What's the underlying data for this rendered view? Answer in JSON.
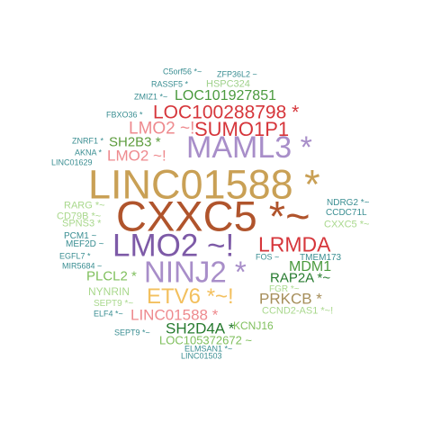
{
  "words": [
    {
      "text": "C5orf56 *~",
      "color": "#3a8e92"
    },
    {
      "text": "ZFP36L2 ~",
      "color": "#3a8e92"
    },
    {
      "text": "RASSF5 *",
      "color": "#3a8e92"
    },
    {
      "text": "HSPC324",
      "color": "#9fd18b"
    },
    {
      "text": "ZMIZ1 *~",
      "color": "#3a8e92"
    },
    {
      "text": "LOC101927851",
      "color": "#4b9a3e"
    },
    {
      "text": "FBXO36 *",
      "color": "#3a8e92"
    },
    {
      "text": "LOC100288798 *",
      "color": "#d6363b"
    },
    {
      "text": "LMO2 ~!",
      "color": "#ee8a8e"
    },
    {
      "text": "SUMO1P1",
      "color": "#d6363b"
    },
    {
      "text": "ZNRF1 *",
      "color": "#3a8e92"
    },
    {
      "text": "SH2B3 *",
      "color": "#5d9c3d"
    },
    {
      "text": "MAML3 *",
      "color": "#a88ec9"
    },
    {
      "text": "AKNA *",
      "color": "#3a8e92"
    },
    {
      "text": "LMO2 ~!",
      "color": "#ee8a8e"
    },
    {
      "text": "LINC01629",
      "color": "#3a8e92"
    },
    {
      "text": "LINC01588 *",
      "color": "#c9a055"
    },
    {
      "text": "NDRG2 *~",
      "color": "#3a8e92"
    },
    {
      "text": "RARG *~",
      "color": "#a9d88d"
    },
    {
      "text": "CCDC71L",
      "color": "#3a8e92"
    },
    {
      "text": "CXXC5 *~",
      "color": "#b0542c"
    },
    {
      "text": "CD79B *~",
      "color": "#a9d88d"
    },
    {
      "text": "CXXC5 *~",
      "color": "#a9d88d"
    },
    {
      "text": "SPNS3 *",
      "color": "#a9d88d"
    },
    {
      "text": "PCM1 ~",
      "color": "#3a8e92"
    },
    {
      "text": "LMO2 ~!",
      "color": "#7d5aa7"
    },
    {
      "text": "LRMDA",
      "color": "#d6363b"
    },
    {
      "text": "MEF2D ~",
      "color": "#3a8e92"
    },
    {
      "text": "EGFL7 *",
      "color": "#3a8e92"
    },
    {
      "text": "FOS ~",
      "color": "#3a8e92"
    },
    {
      "text": "TMEM173",
      "color": "#3a8e92"
    },
    {
      "text": "MIR5684 ~",
      "color": "#3a8e92"
    },
    {
      "text": "NINJ2 *",
      "color": "#a88ec9"
    },
    {
      "text": "MDM1",
      "color": "#4b9a3e"
    },
    {
      "text": "PLCL2 *",
      "color": "#7fbf5c"
    },
    {
      "text": "RAP2A *~",
      "color": "#267a2e"
    },
    {
      "text": "FGR *~",
      "color": "#a9d88d"
    },
    {
      "text": "NYNRIN",
      "color": "#a9d88d"
    },
    {
      "text": "ETV6 *~!",
      "color": "#f3c05e"
    },
    {
      "text": "PRKCB *",
      "color": "#a68e5a"
    },
    {
      "text": "SEPT9 *~",
      "color": "#a9d88d"
    },
    {
      "text": "CCND2-AS1 *~!",
      "color": "#a9d88d"
    },
    {
      "text": "ELF4 *~",
      "color": "#3a8e92"
    },
    {
      "text": "LINC01588 *",
      "color": "#ee8a8e"
    },
    {
      "text": "SH2D4A *",
      "color": "#267a2e"
    },
    {
      "text": "KCNJ16",
      "color": "#7fbf5c"
    },
    {
      "text": "SEPT9 *~",
      "color": "#3a8e92"
    },
    {
      "text": "LOC105372672 ~",
      "color": "#7fbf5c"
    },
    {
      "text": "ELMSAN1 *~",
      "color": "#3a8e92"
    },
    {
      "text": "LINC01503",
      "color": "#3a8e92"
    }
  ]
}
